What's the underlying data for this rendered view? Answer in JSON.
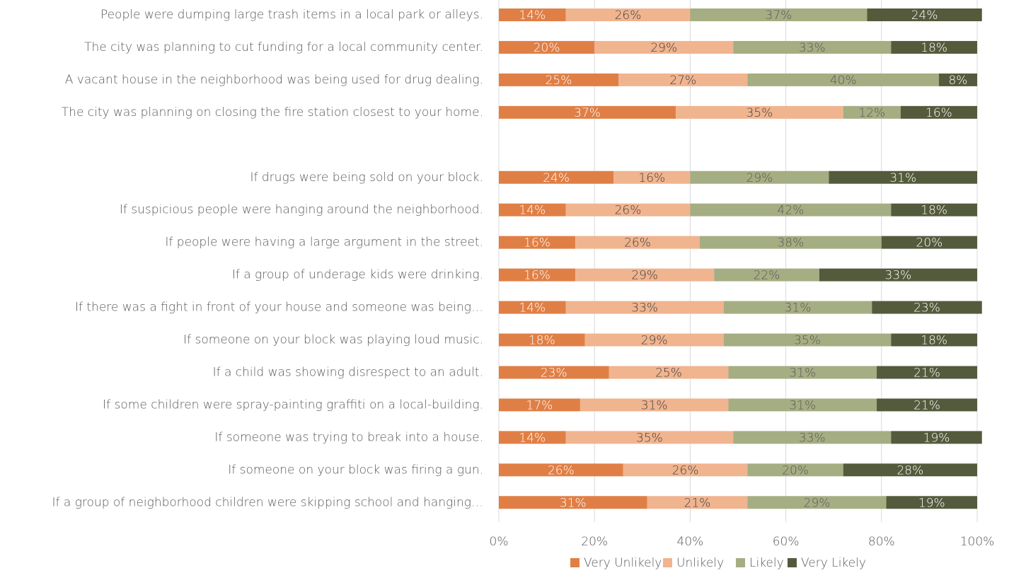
{
  "chart_data": {
    "type": "stacked_bar_horizontal",
    "categories": [
      "People were dumping large trash items in a local park or alleys.",
      "The city was planning to cut funding for a local community center.",
      "A vacant house in the neighborhood was being used for drug dealing.",
      "The city was planning on closing the fire station closest to your home.",
      null,
      "If drugs were being sold on your block.",
      "If suspicious people were hanging around the neighborhood.",
      "If people were having a large argument in the street.",
      "If a group of underage kids were drinking.",
      "If there was a fight in front of your house and someone was being…",
      "If someone on your block was playing loud music.",
      "If a child was showing disrespect to an adult.",
      "If some children were spray-painting graffiti on a local-building.",
      "If someone was trying to break into a house.",
      "If someone on your block was firing a gun.",
      "If a group of neighborhood children were skipping school and hanging…"
    ],
    "series": [
      {
        "name": "Very Unlikely",
        "color": "#e07f45",
        "values": [
          14,
          20,
          25,
          37,
          null,
          24,
          14,
          16,
          16,
          14,
          18,
          23,
          17,
          14,
          26,
          31
        ],
        "value_labels": [
          "14%",
          "20%",
          "25%",
          "37%",
          null,
          "24%",
          "14%",
          "16%",
          "16%",
          "14%",
          "18%",
          "23%",
          "17%",
          "14%",
          "26%",
          "31%"
        ]
      },
      {
        "name": "Unlikely",
        "color": "#f0b48f",
        "values": [
          26,
          29,
          27,
          35,
          null,
          16,
          26,
          26,
          29,
          33,
          29,
          25,
          31,
          35,
          26,
          21
        ],
        "value_labels": [
          "26%",
          "29%",
          "27%",
          "35%",
          null,
          "16%",
          "26%",
          "26%",
          "29%",
          "33%",
          "29%",
          "25%",
          "31%",
          "35%",
          "26%",
          "21%"
        ]
      },
      {
        "name": "Likely",
        "color": "#a5ad82",
        "values": [
          37,
          33,
          40,
          12,
          null,
          29,
          42,
          38,
          22,
          31,
          35,
          31,
          31,
          33,
          20,
          29
        ],
        "value_labels": [
          "37%",
          "33%",
          "40%",
          "12%",
          null,
          "29%",
          "42%",
          "38%",
          "22%",
          "31%",
          "35%",
          "31%",
          "31%",
          "33%",
          "20%",
          "29%"
        ]
      },
      {
        "name": "Very Likely",
        "color": "#545b3c",
        "values": [
          24,
          18,
          8,
          16,
          null,
          31,
          18,
          20,
          33,
          23,
          18,
          21,
          21,
          19,
          28,
          19
        ],
        "value_labels": [
          "24%",
          "18%",
          "8%",
          "16%",
          null,
          "31%",
          "18%",
          "20%",
          "33%",
          "23%",
          "18%",
          "21%",
          "21%",
          "19%",
          "28%",
          "19%"
        ]
      }
    ],
    "xlim": [
      0,
      100
    ],
    "xticks": [
      {
        "value": 0,
        "label": "0%"
      },
      {
        "value": 20,
        "label": "20%"
      },
      {
        "value": 40,
        "label": "40%"
      },
      {
        "value": 60,
        "label": "60%"
      },
      {
        "value": 80,
        "label": "80%"
      },
      {
        "value": 100,
        "label": "100%"
      }
    ],
    "grid": true,
    "legend": "bottom"
  }
}
